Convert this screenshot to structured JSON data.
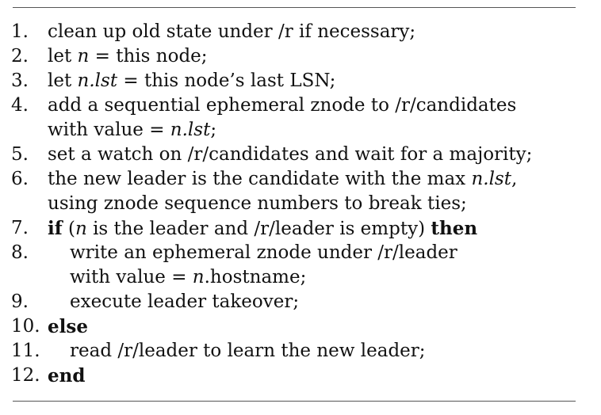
{
  "lines": [
    {
      "num": "1.",
      "a": "clean up old state under /r if necessary;"
    },
    {
      "num": "2.",
      "a": "let ",
      "b": "n",
      "c": " = this node;"
    },
    {
      "num": "3.",
      "a": "let ",
      "b": "n.lst",
      "c": " = this node’s last LSN;"
    },
    {
      "num": "4.",
      "a": "add a sequential ephemeral znode to /r/candidates"
    },
    {
      "num": "",
      "a": "with value = ",
      "b": "n.lst",
      "c": ";"
    },
    {
      "num": "5.",
      "a": "set a watch on /r/candidates and wait for a majority;"
    },
    {
      "num": "6.",
      "a": "the new leader is the candidate with the max ",
      "b": "n.lst",
      "c": ","
    },
    {
      "num": "",
      "a": "using znode sequence numbers to break ties;"
    },
    {
      "num": "7.",
      "kw1": "if",
      "a": " (",
      "b": "n",
      "c": " is the leader and /r/leader is empty) ",
      "kw2": "then"
    },
    {
      "num": "8.",
      "a": "write an ephemeral znode under /r/leader"
    },
    {
      "num": "",
      "a": "with value = ",
      "b": "n",
      "c": ".hostname;"
    },
    {
      "num": "9.",
      "a": "execute leader takeover;"
    },
    {
      "num": "10.",
      "kw1": "else"
    },
    {
      "num": "11.",
      "a": "read /r/leader to learn the new leader;"
    },
    {
      "num": "12.",
      "kw1": "end"
    }
  ]
}
